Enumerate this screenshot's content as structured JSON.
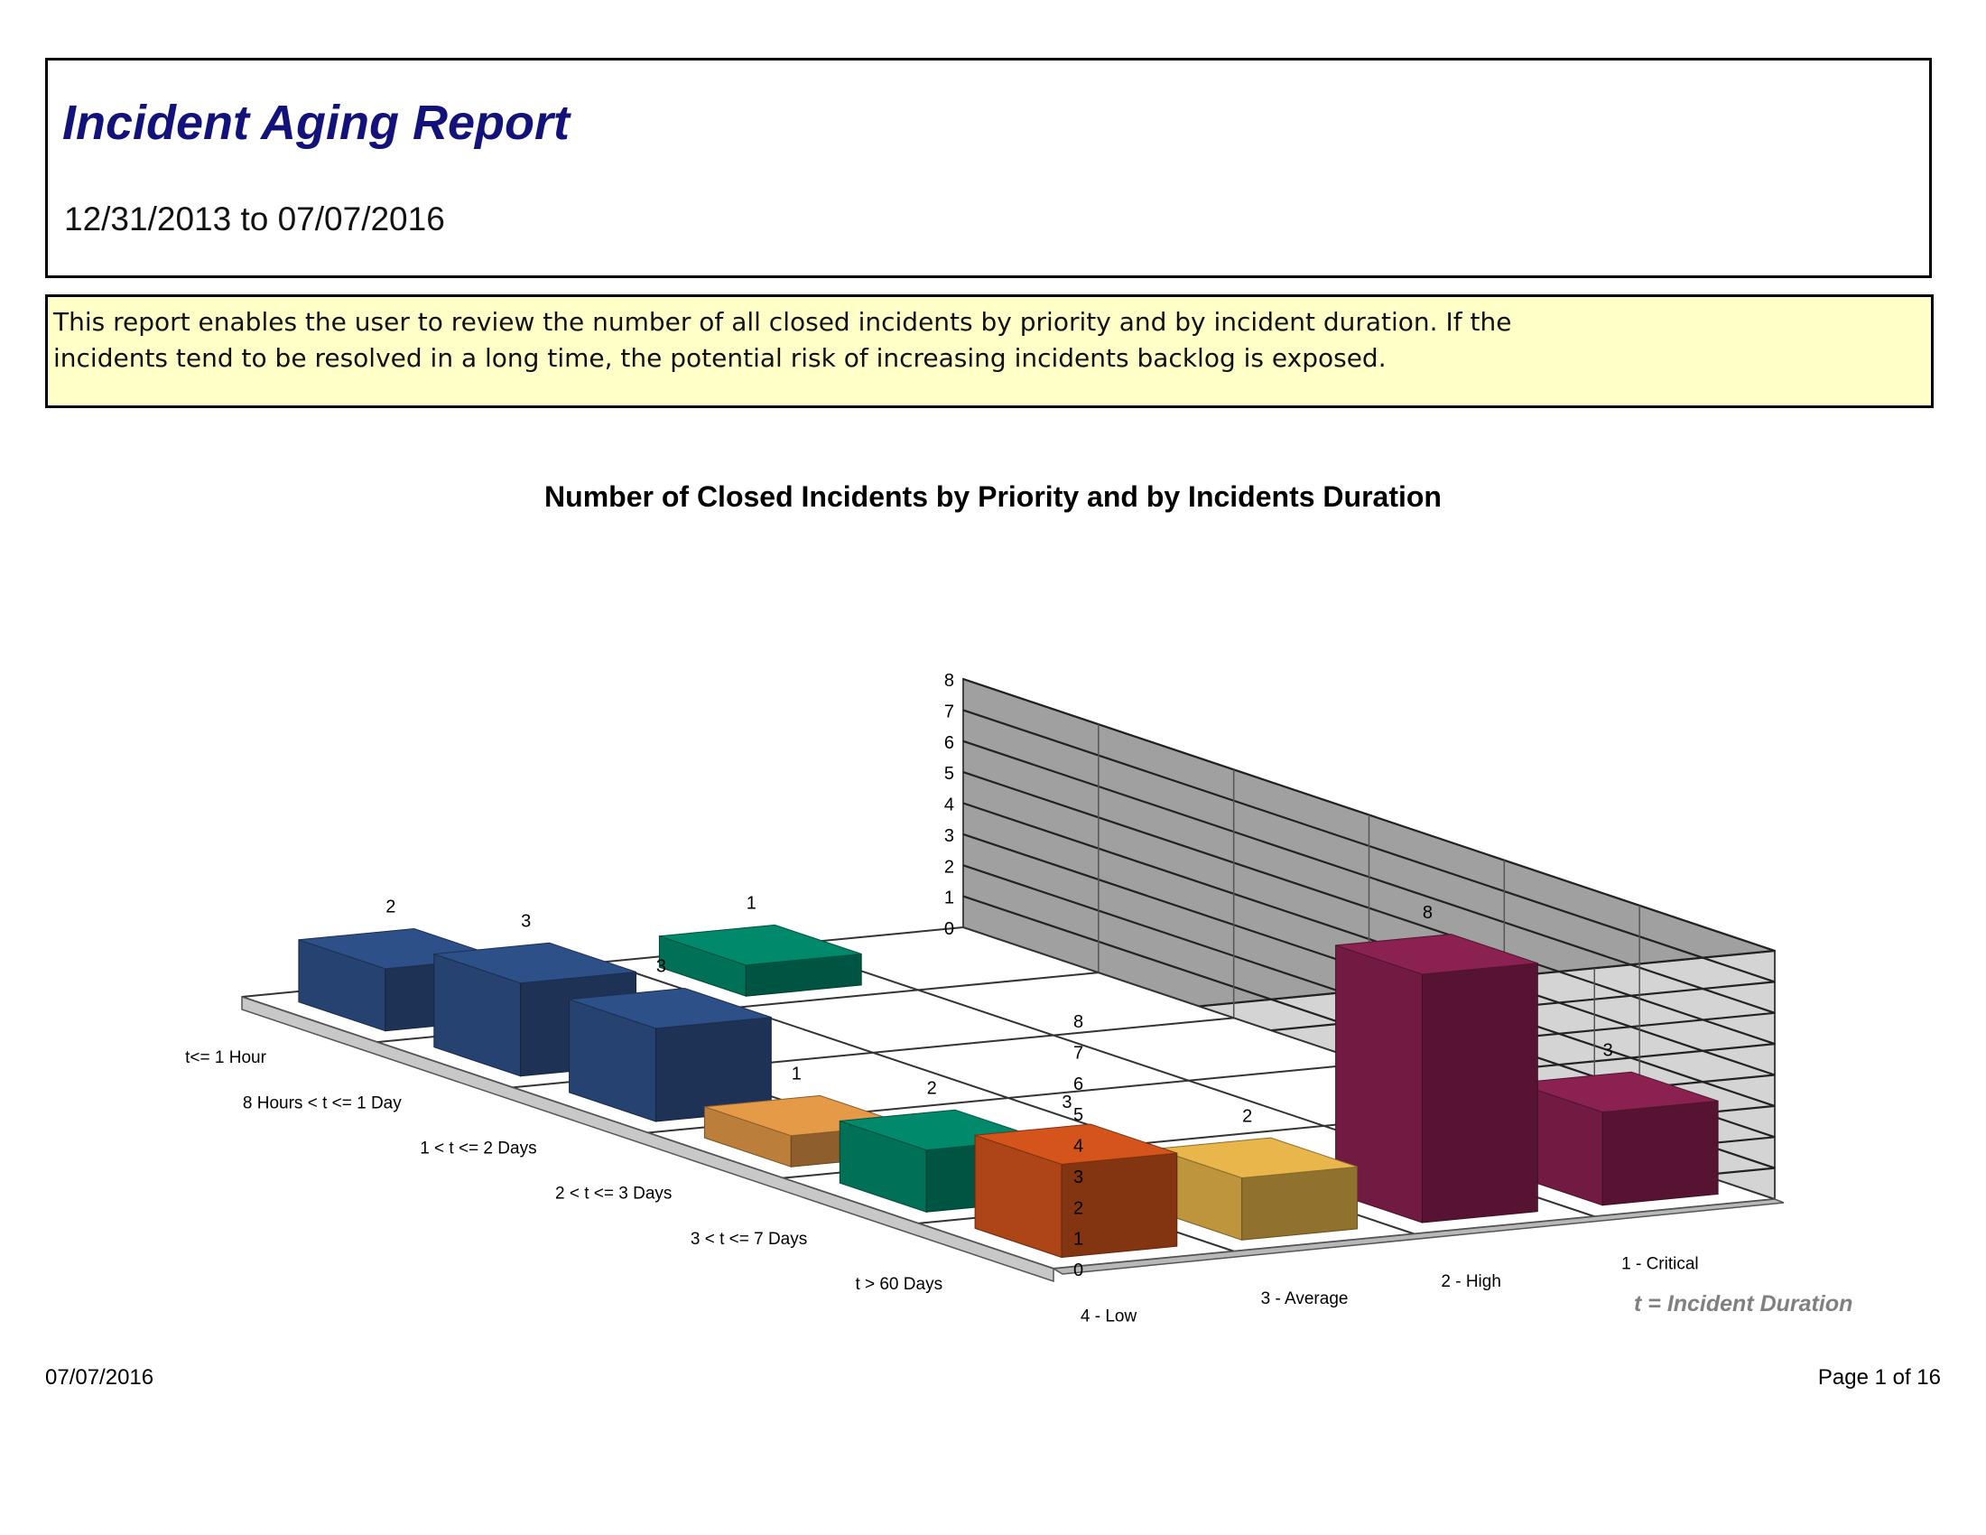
{
  "report": {
    "title": "Incident Aging Report",
    "date_range": "12/31/2013 to 07/07/2016",
    "description": "This report enables the user to review the number of all closed incidents by priority and by incident duration. If the incidents tend to be resolved in a long time, the potential risk of increasing incidents backlog is exposed."
  },
  "chart_data": {
    "type": "bar",
    "subtype": "3d-column",
    "title": "Number of Closed Incidents by Priority and by Incidents Duration",
    "categories": [
      "t<= 1 Hour",
      "8 Hours < t <= 1 Day",
      "1 < t <= 2 Days",
      "2 < t <= 3 Days",
      "3 < t <= 7 Days",
      "t > 60 Days"
    ],
    "series_axis": [
      "1 - Critical",
      "2 - High",
      "3 - Average",
      "4 - Low"
    ],
    "zlim": [
      0,
      8
    ],
    "z_ticks": [
      0,
      1,
      2,
      3,
      4,
      5,
      6,
      7,
      8
    ],
    "grid": true,
    "bars": [
      {
        "duration": "t<= 1 Hour",
        "priority": "2 - High",
        "value": 1,
        "color": "#00896a"
      },
      {
        "duration": "t<= 1 Hour",
        "priority": "4 - Low",
        "value": 2,
        "color": "#2e5088"
      },
      {
        "duration": "8 Hours < t <= 1 Day",
        "priority": "4 - Low",
        "value": 3,
        "color": "#2e5088"
      },
      {
        "duration": "1 < t <= 2 Days",
        "priority": "4 - Low",
        "value": 3,
        "color": "#2e5088"
      },
      {
        "duration": "2 < t <= 3 Days",
        "priority": "4 - Low",
        "value": 1,
        "color": "#e59a48"
      },
      {
        "duration": "3 < t <= 7 Days",
        "priority": "4 - Low",
        "value": 2,
        "color": "#00896a"
      },
      {
        "duration": "t > 60 Days",
        "priority": "4 - Low",
        "value": 3,
        "color": "#d4541b"
      },
      {
        "duration": "t > 60 Days",
        "priority": "1 - Critical",
        "value": 3,
        "color": "#8a2150"
      },
      {
        "duration": "t > 60 Days",
        "priority": "2 - High",
        "value": 8,
        "color": "#8a2150"
      },
      {
        "duration": "t > 60 Days",
        "priority": "3 - Average",
        "value": 2,
        "color": "#e8b64a"
      }
    ],
    "note": "t = Incident Duration"
  },
  "footer": {
    "date": "07/07/2016",
    "page": "Page 1 of 16"
  }
}
